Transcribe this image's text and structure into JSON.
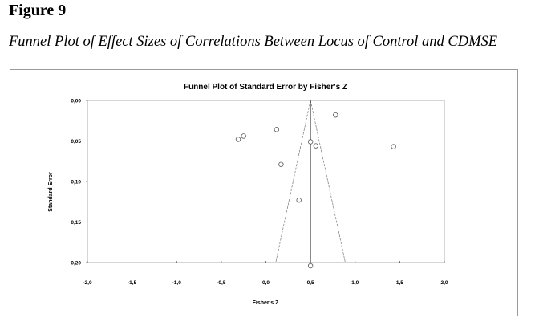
{
  "figure": {
    "label": "Figure 9",
    "caption": "Funnel Plot of Effect Sizes of Correlations Between Locus of Control and CDMSE"
  },
  "chart_data": {
    "type": "scatter",
    "title": "Funnel Plot of Standard Error by Fisher's Z",
    "xlabel": "Fisher's Z",
    "ylabel": "Standard Error",
    "xlim": [
      -2.0,
      2.0
    ],
    "ylim": [
      0.0,
      0.2
    ],
    "y_inverted": true,
    "x_ticks": [
      "-2,0",
      "-1,5",
      "-1,0",
      "-0,5",
      "0,0",
      "0,5",
      "1,0",
      "1,5",
      "2,0"
    ],
    "x_tick_values": [
      -2.0,
      -1.5,
      -1.0,
      -0.5,
      0.0,
      0.5,
      1.0,
      1.5,
      2.0
    ],
    "y_ticks": [
      "0,00",
      "0,05",
      "0,10",
      "0,15",
      "0,20"
    ],
    "y_tick_values": [
      0.0,
      0.05,
      0.1,
      0.15,
      0.2
    ],
    "points": [
      {
        "x": -0.31,
        "y": 0.048
      },
      {
        "x": -0.25,
        "y": 0.044
      },
      {
        "x": 0.12,
        "y": 0.036
      },
      {
        "x": 0.17,
        "y": 0.079
      },
      {
        "x": 0.37,
        "y": 0.123
      },
      {
        "x": 0.5,
        "y": 0.051
      },
      {
        "x": 0.56,
        "y": 0.056
      },
      {
        "x": 0.78,
        "y": 0.018
      },
      {
        "x": 1.43,
        "y": 0.057
      },
      {
        "x": 0.5,
        "y": 0.204
      }
    ],
    "center_line_x": 0.5,
    "funnel": {
      "apex": [
        0.5,
        0.0
      ],
      "base_left": [
        0.11,
        0.2
      ],
      "base_right": [
        0.89,
        0.2
      ]
    },
    "grid": false,
    "legend": "none"
  }
}
